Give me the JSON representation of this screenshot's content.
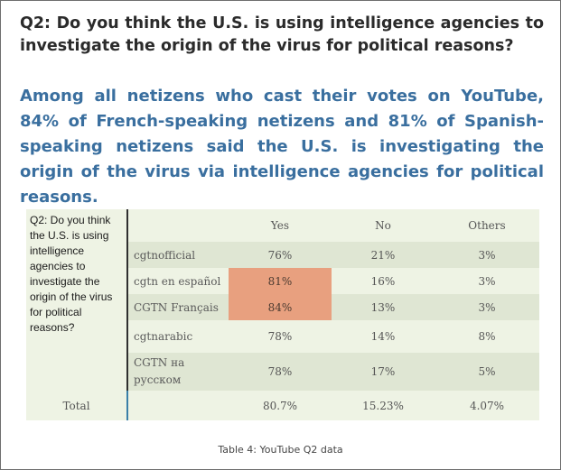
{
  "question_title": "Q2: Do you think the U.S. is using intelligence agencies to investigate the origin of the virus for political reasons?",
  "summary": "Among all netizens who cast their votes on YouTube, 84% of French-speaking netizens and 81% of Spanish-speaking netizens said the U.S. is investigating the origin of the virus via intelligence agencies for political reasons.",
  "table": {
    "question_cell": "Q2: Do you think the U.S. is using intelligence agencies to investigate the origin of the virus for political reasons?",
    "columns": [
      "Yes",
      "No",
      "Others"
    ],
    "rows": [
      {
        "channel": "cgtnofficial",
        "yes": "76%",
        "no": "21%",
        "others": "3%"
      },
      {
        "channel": "cgtn en español",
        "yes": "81%",
        "no": "16%",
        "others": "3%"
      },
      {
        "channel": "CGTN Français",
        "yes": "84%",
        "no": "13%",
        "others": "3%"
      },
      {
        "channel": "cgtnarabic",
        "yes": "78%",
        "no": "14%",
        "others": "8%"
      },
      {
        "channel": "CGTN на русском",
        "yes": "78%",
        "no": "17%",
        "others": "5%"
      }
    ],
    "total": {
      "label": "Total",
      "yes": "80.7%",
      "no": "15.23%",
      "others": "4.07%"
    },
    "highlight_color": "#e8a07f"
  },
  "caption": "Table 4: YouTube Q2 data"
}
